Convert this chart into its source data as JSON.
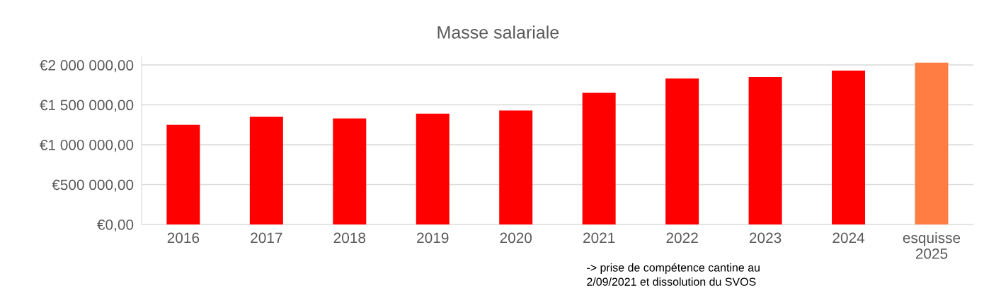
{
  "chart_data": {
    "type": "bar",
    "title": "Masse salariale",
    "categories": [
      "2016",
      "2017",
      "2018",
      "2019",
      "2020",
      "2021",
      "2022",
      "2023",
      "2024",
      "esquisse\n2025"
    ],
    "values": [
      1250000,
      1350000,
      1330000,
      1390000,
      1430000,
      1650000,
      1830000,
      1850000,
      1930000,
      2030000
    ],
    "colors": [
      "#ff0000",
      "#ff0000",
      "#ff0000",
      "#ff0000",
      "#ff0000",
      "#ff0000",
      "#ff0000",
      "#ff0000",
      "#ff0000",
      "#ff7c43"
    ],
    "ylim": [
      0,
      2100000
    ],
    "yticks": [
      {
        "value": 0,
        "label": "€0,00"
      },
      {
        "value": 500000,
        "label": "€500 000,00"
      },
      {
        "value": 1000000,
        "label": "€1 000 000,00"
      },
      {
        "value": 1500000,
        "label": "€1 500 000,00"
      },
      {
        "value": 2000000,
        "label": "€2 000 000,00"
      }
    ],
    "grid": "y",
    "annotations": [
      "-> prise de compétence cantine au\n2/09/2021 et dissolution du SVOS"
    ]
  }
}
